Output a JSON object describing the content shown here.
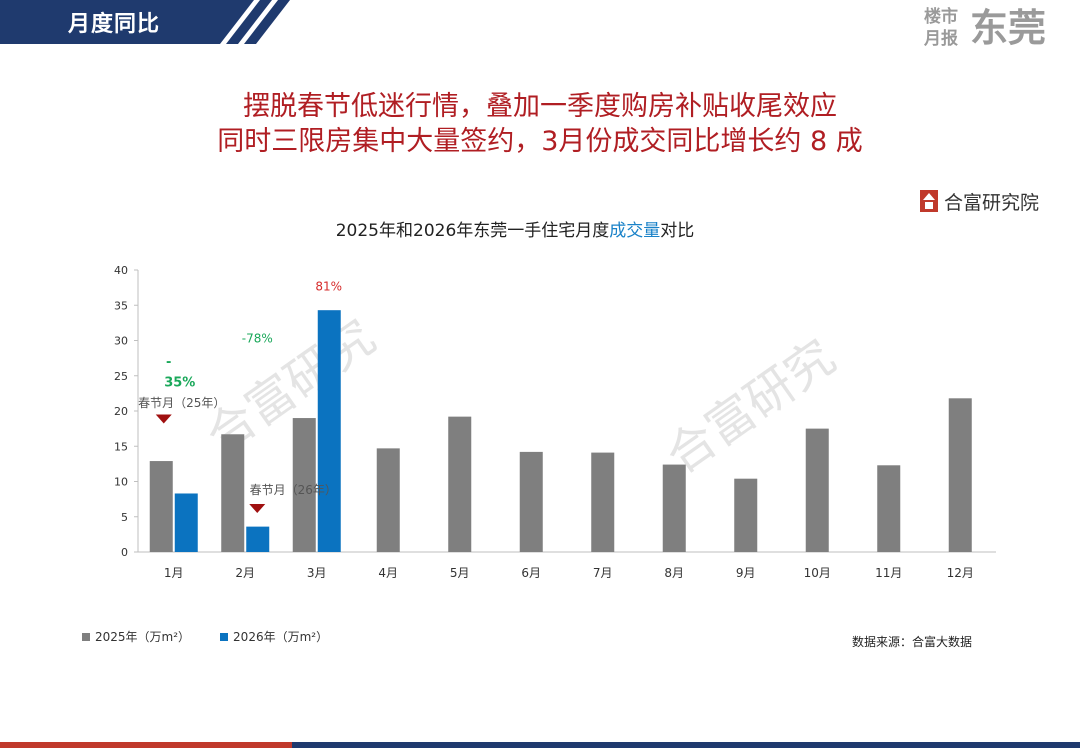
{
  "header": {
    "title": "月度同比"
  },
  "brand": {
    "line1": "楼市",
    "line2": "月报",
    "city": "东莞"
  },
  "headline": {
    "line1": "摆脱春节低迷行情，叠加一季度购房补贴收尾效应",
    "line2": "同时三限房集中大量签约，3月份成交同比增长约 8 成"
  },
  "logo": {
    "text": "合富研究院"
  },
  "watermark": {
    "text": "合富研究"
  },
  "chart_title": {
    "prefix": "2025年和2026年东莞一手住宅月度",
    "highlight": "成交量",
    "suffix": "对比"
  },
  "colors": {
    "navy": "#1f3a6e",
    "red": "#c0392b",
    "series_2025": "#7f7f7f",
    "series_2026": "#0b73c0",
    "headline": "#b01e23",
    "highlight": "#1a82c8",
    "annotation_green": "#1aa85a",
    "annotation_red": "#d62b2b",
    "marker": "#a01010"
  },
  "chart_data": {
    "type": "bar",
    "categories": [
      "1月",
      "2月",
      "3月",
      "4月",
      "5月",
      "6月",
      "7月",
      "8月",
      "9月",
      "10月",
      "11月",
      "12月"
    ],
    "series": [
      {
        "name": "2025年（万m²）",
        "values": [
          12.9,
          16.7,
          19.0,
          14.7,
          19.2,
          14.2,
          14.1,
          12.4,
          10.4,
          17.5,
          12.3,
          21.8
        ]
      },
      {
        "name": "2026年（万m²）",
        "values": [
          8.3,
          3.6,
          34.3,
          null,
          null,
          null,
          null,
          null,
          null,
          null,
          null,
          null
        ]
      }
    ],
    "ylim": [
      0,
      40
    ],
    "yticks": [
      0,
      5,
      10,
      15,
      20,
      25,
      30,
      35,
      40
    ],
    "title": "2025年和2026年东莞一手住宅月度成交量对比",
    "grid": false,
    "legend_position": "bottom-left",
    "annotations": [
      {
        "category": "1月",
        "text": "-",
        "color": "green"
      },
      {
        "category": "1月",
        "text": "35%",
        "color": "green"
      },
      {
        "category": "2月",
        "text": "-78%",
        "color": "green"
      },
      {
        "category": "3月",
        "text": "81%",
        "color": "red"
      },
      {
        "category": "1月",
        "text": "春节月（25年）",
        "marker": true
      },
      {
        "category": "2月",
        "text": "春节月（26年）",
        "marker": true
      }
    ]
  },
  "source": "数据来源：合富大数据"
}
